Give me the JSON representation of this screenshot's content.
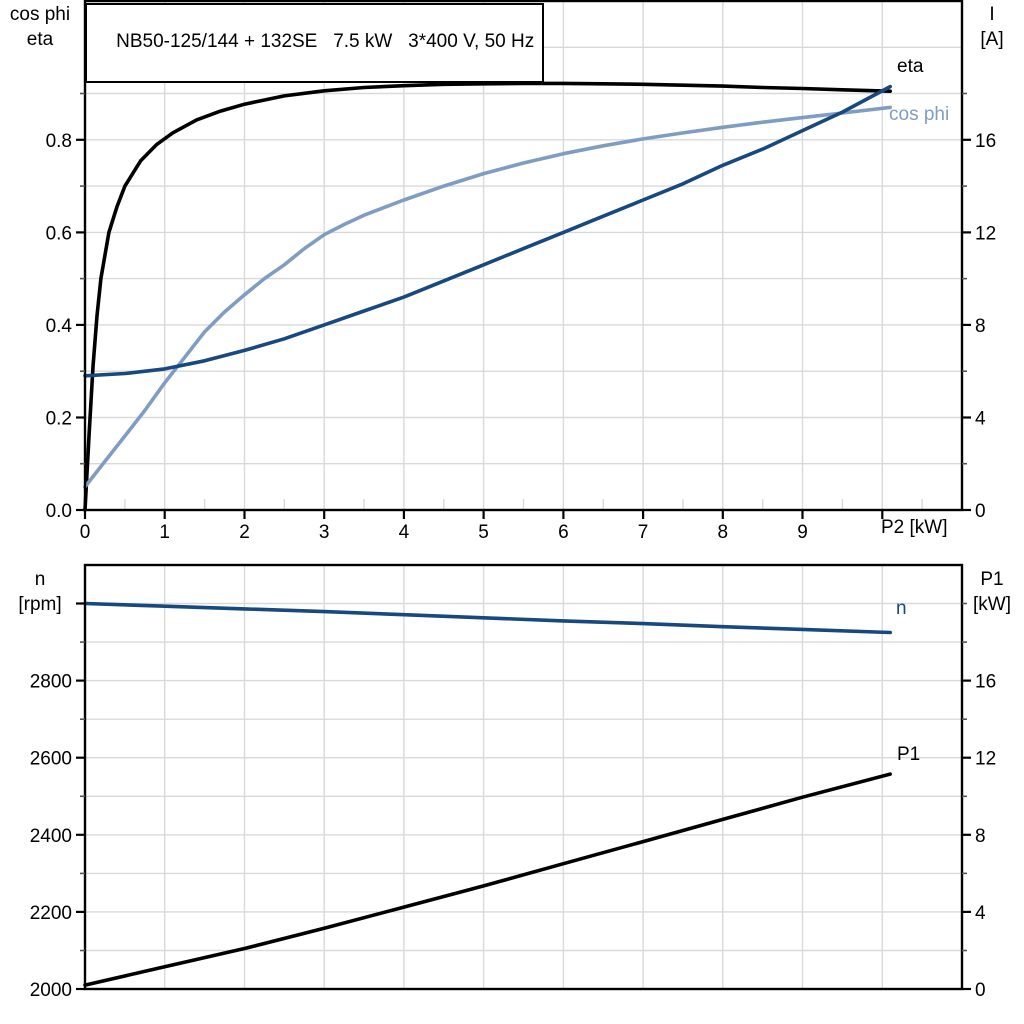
{
  "title_box": {
    "text": "NB50-125/144 + 132SE   7.5 kW   3*400 V, 50 Hz"
  },
  "colors": {
    "black": "#000000",
    "dark_blue": "#17497e",
    "light_blue": "#7f9dc2",
    "grid": "#d9d9d9",
    "minor_tick": "#555555"
  },
  "top_chart": {
    "left_axis_label_line1": "cos phi",
    "left_axis_label_line2": "eta",
    "right_axis_label_line1": "I",
    "right_axis_label_line2": "[A]",
    "x_axis_label": "P2 [kW]",
    "curve_labels": {
      "eta": "eta",
      "cos_phi": "cos phi"
    }
  },
  "bottom_chart": {
    "left_axis_label_line1": "n",
    "left_axis_label_line2": "[rpm]",
    "right_axis_label_line1": "P1",
    "right_axis_label_line2": "[kW]",
    "curve_labels": {
      "n": "n",
      "p1": "P1"
    }
  },
  "chart_data": [
    {
      "type": "line",
      "name": "motor-efficiency-chart",
      "title": "NB50-125/144 + 132SE   7.5 kW   3*400 V, 50 Hz",
      "xlabel": "P2 [kW]",
      "ylabel_left": "cos phi / eta",
      "ylabel_right": "I [A]",
      "xlim": [
        0,
        11
      ],
      "ylim_left": [
        0,
        1.1
      ],
      "ylim_right": [
        0,
        22
      ],
      "grid": {
        "vertical": [
          1,
          2,
          3,
          4,
          5,
          6,
          7,
          8,
          9,
          10
        ],
        "horizontal_left": [
          0.1,
          0.2,
          0.3,
          0.4,
          0.5,
          0.6,
          0.7,
          0.8,
          0.9,
          1.0
        ]
      },
      "x_axis": {
        "ticks": [
          {
            "v": 0,
            "label": "0"
          },
          {
            "v": 1,
            "label": "1"
          },
          {
            "v": 2,
            "label": "2"
          },
          {
            "v": 3,
            "label": "3"
          },
          {
            "v": 4,
            "label": "4"
          },
          {
            "v": 5,
            "label": "5"
          },
          {
            "v": 6,
            "label": "6"
          },
          {
            "v": 7,
            "label": "7"
          },
          {
            "v": 8,
            "label": "8"
          },
          {
            "v": 9,
            "label": "9"
          },
          {
            "v": 10,
            "label": ""
          }
        ],
        "minor": [
          0.5,
          1.5,
          2.5,
          3.5,
          4.5,
          5.5,
          6.5,
          7.5,
          8.5,
          9.5,
          10.5
        ]
      },
      "left_axis": {
        "ticks": [
          {
            "v": 0,
            "label": "0.0"
          },
          {
            "v": 0.2,
            "label": "0.2"
          },
          {
            "v": 0.4,
            "label": "0.4"
          },
          {
            "v": 0.6,
            "label": "0.6"
          },
          {
            "v": 0.8,
            "label": "0.8"
          }
        ],
        "minor": [
          0.1,
          0.3,
          0.5,
          0.7,
          0.9
        ]
      },
      "right_axis": {
        "ticks": [
          {
            "v": 0,
            "label": "0"
          },
          {
            "v": 4,
            "label": "4"
          },
          {
            "v": 8,
            "label": "8"
          },
          {
            "v": 12,
            "label": "12"
          },
          {
            "v": 16,
            "label": "16"
          }
        ],
        "minor": [
          2,
          6,
          10,
          14,
          18
        ]
      },
      "series": [
        {
          "name": "eta",
          "axis": "left",
          "color": "#000000",
          "width": 3.6,
          "points": [
            [
              0,
              0
            ],
            [
              0.05,
              0.16
            ],
            [
              0.1,
              0.31
            ],
            [
              0.15,
              0.42
            ],
            [
              0.2,
              0.5
            ],
            [
              0.3,
              0.6
            ],
            [
              0.4,
              0.655
            ],
            [
              0.5,
              0.7
            ],
            [
              0.7,
              0.755
            ],
            [
              0.9,
              0.79
            ],
            [
              1.1,
              0.815
            ],
            [
              1.4,
              0.843
            ],
            [
              1.7,
              0.862
            ],
            [
              2,
              0.877
            ],
            [
              2.5,
              0.895
            ],
            [
              3,
              0.906
            ],
            [
              3.5,
              0.913
            ],
            [
              4,
              0.917
            ],
            [
              4.5,
              0.92
            ],
            [
              5,
              0.921
            ],
            [
              5.5,
              0.922
            ],
            [
              6,
              0.922
            ],
            [
              6.5,
              0.921
            ],
            [
              7,
              0.92
            ],
            [
              7.5,
              0.918
            ],
            [
              8,
              0.916
            ],
            [
              8.5,
              0.913
            ],
            [
              9,
              0.911
            ],
            [
              9.5,
              0.908
            ],
            [
              10.1,
              0.905
            ]
          ]
        },
        {
          "name": "cos-phi",
          "axis": "left",
          "color": "#7f9dc2",
          "width": 3.6,
          "points": [
            [
              0,
              0.05
            ],
            [
              0.25,
              0.105
            ],
            [
              0.5,
              0.16
            ],
            [
              0.75,
              0.215
            ],
            [
              1,
              0.275
            ],
            [
              1.25,
              0.33
            ],
            [
              1.5,
              0.385
            ],
            [
              1.75,
              0.428
            ],
            [
              2,
              0.465
            ],
            [
              2.25,
              0.5
            ],
            [
              2.5,
              0.53
            ],
            [
              2.75,
              0.565
            ],
            [
              3,
              0.595
            ],
            [
              3.25,
              0.617
            ],
            [
              3.5,
              0.637
            ],
            [
              4,
              0.67
            ],
            [
              4.5,
              0.7
            ],
            [
              5,
              0.727
            ],
            [
              5.5,
              0.75
            ],
            [
              6,
              0.77
            ],
            [
              6.5,
              0.787
            ],
            [
              7,
              0.802
            ],
            [
              7.5,
              0.815
            ],
            [
              8,
              0.827
            ],
            [
              8.5,
              0.838
            ],
            [
              9,
              0.848
            ],
            [
              9.5,
              0.858
            ],
            [
              10.1,
              0.87
            ]
          ]
        },
        {
          "name": "current-I",
          "axis": "right",
          "color": "#17497e",
          "width": 3.6,
          "points": [
            [
              0,
              5.8
            ],
            [
              0.5,
              5.9
            ],
            [
              1,
              6.1
            ],
            [
              1.5,
              6.45
            ],
            [
              2,
              6.9
            ],
            [
              2.5,
              7.4
            ],
            [
              3,
              8
            ],
            [
              3.5,
              8.6
            ],
            [
              4,
              9.2
            ],
            [
              4.5,
              9.9
            ],
            [
              5,
              10.6
            ],
            [
              5.5,
              11.3
            ],
            [
              6,
              12
            ],
            [
              6.5,
              12.7
            ],
            [
              7,
              13.4
            ],
            [
              7.5,
              14.1
            ],
            [
              8,
              14.9
            ],
            [
              8.5,
              15.6
            ],
            [
              9,
              16.4
            ],
            [
              9.5,
              17.2
            ],
            [
              10.1,
              18.3
            ]
          ]
        }
      ]
    },
    {
      "type": "line",
      "name": "speed-power-chart",
      "title": "",
      "xlabel": "",
      "ylabel_left": "n [rpm]",
      "ylabel_right": "P1 [kW]",
      "xlim": [
        0,
        11
      ],
      "ylim_left": [
        2000,
        3100
      ],
      "ylim_right": [
        0,
        22
      ],
      "grid": {
        "vertical": [
          1,
          2,
          3,
          4,
          5,
          6,
          7,
          8,
          9,
          10
        ],
        "horizontal_left": [
          2100,
          2200,
          2300,
          2400,
          2500,
          2600,
          2700,
          2800,
          2900,
          3000
        ]
      },
      "x_axis": {
        "ticks": [],
        "minor": []
      },
      "left_axis": {
        "ticks": [
          {
            "v": 2000,
            "label": "2000"
          },
          {
            "v": 2200,
            "label": "2200"
          },
          {
            "v": 2400,
            "label": "2400"
          },
          {
            "v": 2600,
            "label": "2600"
          },
          {
            "v": 2800,
            "label": "2800"
          },
          {
            "v": 3000,
            "label": ""
          }
        ],
        "minor": [
          2100,
          2300,
          2500,
          2700,
          2900
        ]
      },
      "right_axis": {
        "ticks": [
          {
            "v": 0,
            "label": "0"
          },
          {
            "v": 4,
            "label": "4"
          },
          {
            "v": 8,
            "label": "8"
          },
          {
            "v": 12,
            "label": "12"
          },
          {
            "v": 16,
            "label": "16"
          }
        ],
        "minor": [
          2,
          6,
          10,
          14,
          18,
          20
        ]
      },
      "series": [
        {
          "name": "speed-n",
          "axis": "left",
          "color": "#17497e",
          "width": 3.6,
          "points": [
            [
              0,
              3000
            ],
            [
              1,
              2993
            ],
            [
              2,
              2986
            ],
            [
              3,
              2979
            ],
            [
              4,
              2971
            ],
            [
              5,
              2963
            ],
            [
              6,
              2955
            ],
            [
              7,
              2948
            ],
            [
              8,
              2940
            ],
            [
              9,
              2933
            ],
            [
              10.1,
              2925
            ]
          ]
        },
        {
          "name": "input-power-P1",
          "axis": "right",
          "color": "#000000",
          "width": 3.6,
          "points": [
            [
              0,
              0.2
            ],
            [
              1,
              1.15
            ],
            [
              2,
              2.1
            ],
            [
              3,
              3.15
            ],
            [
              4,
              4.25
            ],
            [
              5,
              5.35
            ],
            [
              6,
              6.5
            ],
            [
              7,
              7.65
            ],
            [
              8,
              8.8
            ],
            [
              9,
              9.95
            ],
            [
              10.1,
              11.15
            ]
          ]
        }
      ]
    }
  ]
}
